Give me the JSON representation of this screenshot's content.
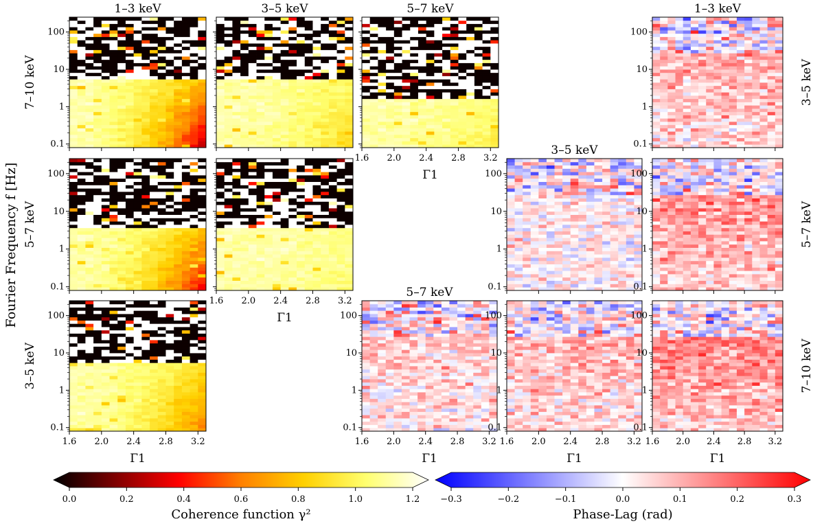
{
  "chart_data": {
    "type": "heatmap",
    "title": "",
    "y_label": "Fourier Frequency f [Hz]",
    "x_label": "Γ1",
    "x_range": [
      1.6,
      3.3
    ],
    "x_ticks": [
      "1.6",
      "2.0",
      "2.4",
      "2.8",
      "3.2"
    ],
    "x_tick_values": [
      1.6,
      2.0,
      2.4,
      2.8,
      3.2
    ],
    "y_range_hz": [
      0.08,
      250
    ],
    "y_ticks": [
      "0.1",
      "1",
      "10",
      "100"
    ],
    "y_tick_values": [
      0.1,
      1,
      10,
      100
    ],
    "grid_columns": 17,
    "grid_rows": 40,
    "coherence_panels": [
      {
        "id": "coh-1-3-vs-7-10",
        "title": "1–3 keV",
        "row_label": "7–10 keV",
        "pattern": "coh",
        "noise_above_hz": 5,
        "corr_strength": 1.0
      },
      {
        "id": "coh-3-5-vs-7-10",
        "title": "3–5 keV",
        "row_label": "",
        "pattern": "coh",
        "noise_above_hz": 5,
        "corr_strength": 0.3
      },
      {
        "id": "coh-5-7-vs-7-10",
        "title": "5–7 keV",
        "row_label": "",
        "pattern": "coh",
        "noise_above_hz": 1.5,
        "corr_strength": 0.2
      },
      {
        "id": "coh-1-3-vs-5-7",
        "title": "",
        "row_label": "5–7 keV",
        "pattern": "coh",
        "noise_above_hz": 4,
        "corr_strength": 0.9
      },
      {
        "id": "coh-3-5-vs-5-7",
        "title": "",
        "row_label": "",
        "pattern": "coh",
        "noise_above_hz": 4,
        "corr_strength": 0.1
      },
      {
        "id": "coh-1-3-vs-3-5",
        "title": "",
        "row_label": "3–5 keV",
        "pattern": "coh",
        "noise_above_hz": 6,
        "corr_strength": 0.6
      }
    ],
    "phase_lag_panels": [
      {
        "id": "lag-1-3-vs-3-5",
        "title": "1–3 keV",
        "row_label": "3–5 keV",
        "pattern": "lag",
        "mean_lag": 0.09
      },
      {
        "id": "lag-3-5-vs-5-7",
        "title": "3–5 keV",
        "row_label": "",
        "pattern": "lag",
        "mean_lag": 0.02
      },
      {
        "id": "lag-1-3-vs-5-7",
        "title": "",
        "row_label": "5–7 keV",
        "pattern": "lag",
        "mean_lag": 0.12
      },
      {
        "id": "lag-5-7-vs-7-10",
        "title": "5–7 keV",
        "row_label": "",
        "pattern": "lag",
        "mean_lag": 0.06
      },
      {
        "id": "lag-3-5-vs-7-10",
        "title": "",
        "row_label": "",
        "pattern": "lag",
        "mean_lag": 0.08
      },
      {
        "id": "lag-1-3-vs-7-10",
        "title": "",
        "row_label": "7–10 keV",
        "pattern": "lag",
        "mean_lag": 0.14
      }
    ],
    "colorbars": [
      {
        "id": "coherence",
        "label": "Coherence function γ²",
        "range": [
          0.0,
          1.2
        ],
        "ticks": [
          "0.0",
          "0.2",
          "0.4",
          "0.6",
          "0.8",
          "1.0",
          "1.2"
        ],
        "tick_values": [
          0.0,
          0.2,
          0.4,
          0.6,
          0.8,
          1.0,
          1.2
        ],
        "colormap": [
          "#000000",
          "#800000",
          "#ff0000",
          "#ff8000",
          "#ffd000",
          "#ffff70",
          "#ffffff"
        ]
      },
      {
        "id": "phase_lag",
        "label": "Phase-Lag (rad)",
        "range": [
          -0.3,
          0.3
        ],
        "ticks": [
          "−0.3",
          "−0.2",
          "−0.1",
          "0.0",
          "0.1",
          "0.2",
          "0.3"
        ],
        "tick_values": [
          -0.3,
          -0.2,
          -0.1,
          0.0,
          0.1,
          0.2,
          0.3
        ],
        "colormap": [
          "#0000ff",
          "#ffffff",
          "#ff0000"
        ]
      }
    ]
  }
}
